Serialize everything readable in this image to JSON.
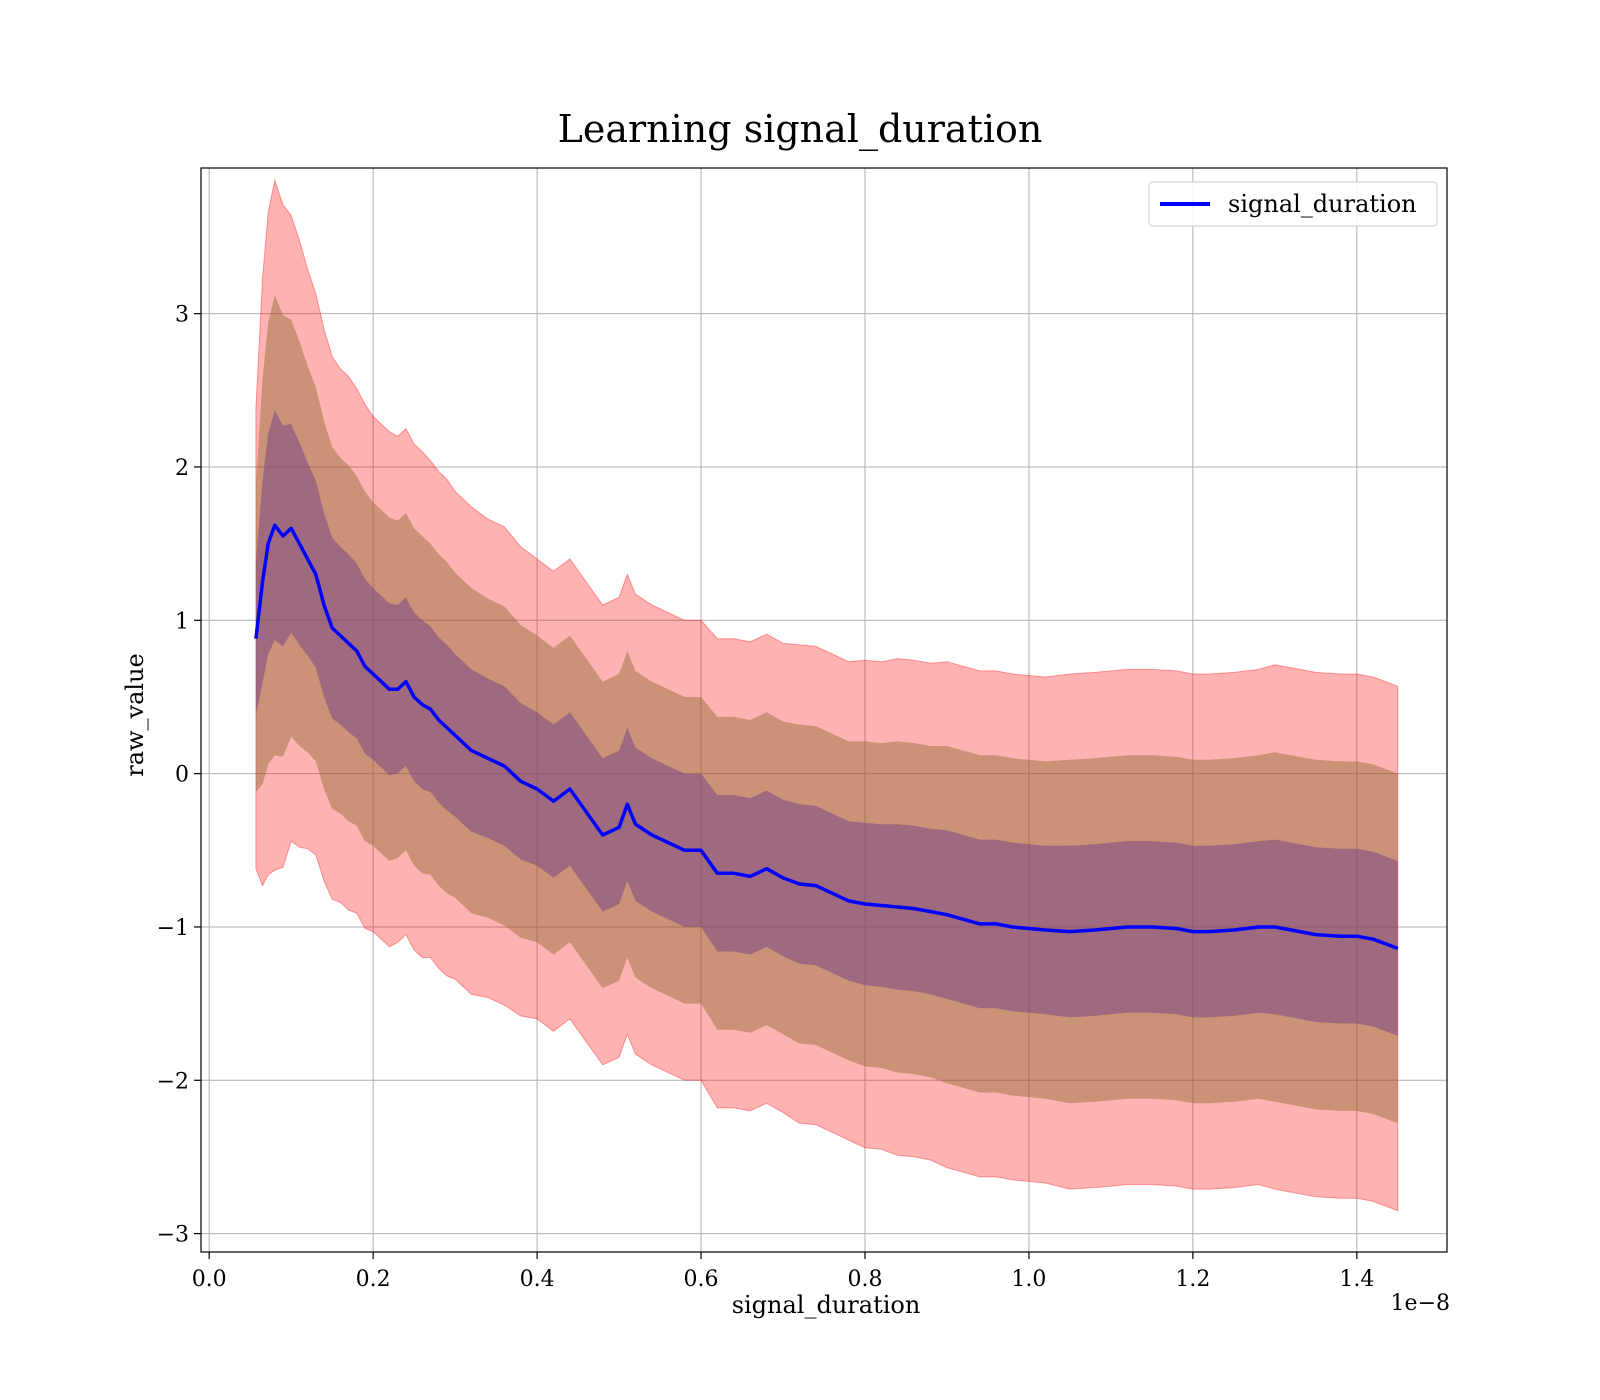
{
  "chart_data": {
    "type": "area",
    "title": "Learning signal_duration",
    "xlabel": "signal_duration",
    "ylabel": "raw_value",
    "x_offset_label": "1e−8",
    "xlim": [
      -0.01,
      1.51
    ],
    "ylim": [
      -3.12,
      3.95
    ],
    "xticks": [
      0.0,
      0.2,
      0.4,
      0.6,
      0.8,
      1.0,
      1.2,
      1.4
    ],
    "xtick_labels": [
      "0.0",
      "0.2",
      "0.4",
      "0.6",
      "0.8",
      "1.0",
      "1.2",
      "1.4"
    ],
    "yticks": [
      -3,
      -2,
      -1,
      0,
      1,
      2,
      3
    ],
    "ytick_labels": [
      "−3",
      "−2",
      "−1",
      "0",
      "1",
      "2",
      "3"
    ],
    "grid": true,
    "legend_position": "top-right",
    "colors": {
      "mean_line": "#0000ff",
      "band_3sigma": "#ff0000",
      "band_2sigma": "#8b6b2e",
      "band_1sigma": "#6b3a8a",
      "grid": "#b0b0b0"
    },
    "series": [
      {
        "name": "signal_duration",
        "x": [
          0.057,
          0.065,
          0.072,
          0.08,
          0.09,
          0.1,
          0.11,
          0.12,
          0.13,
          0.14,
          0.15,
          0.16,
          0.17,
          0.18,
          0.19,
          0.2,
          0.21,
          0.22,
          0.23,
          0.24,
          0.25,
          0.26,
          0.27,
          0.28,
          0.29,
          0.3,
          0.32,
          0.34,
          0.36,
          0.38,
          0.4,
          0.42,
          0.44,
          0.46,
          0.48,
          0.5,
          0.51,
          0.52,
          0.54,
          0.56,
          0.58,
          0.6,
          0.62,
          0.64,
          0.66,
          0.68,
          0.7,
          0.72,
          0.74,
          0.76,
          0.78,
          0.8,
          0.82,
          0.84,
          0.86,
          0.88,
          0.9,
          0.92,
          0.94,
          0.96,
          0.98,
          1.0,
          1.02,
          1.05,
          1.08,
          1.1,
          1.12,
          1.15,
          1.18,
          1.2,
          1.22,
          1.25,
          1.28,
          1.3,
          1.32,
          1.35,
          1.38,
          1.4,
          1.42,
          1.45
        ],
        "mean": [
          0.88,
          1.25,
          1.5,
          1.62,
          1.55,
          1.6,
          1.5,
          1.4,
          1.3,
          1.1,
          0.95,
          0.9,
          0.85,
          0.8,
          0.7,
          0.65,
          0.6,
          0.55,
          0.55,
          0.6,
          0.5,
          0.45,
          0.42,
          0.35,
          0.3,
          0.25,
          0.15,
          0.1,
          0.05,
          -0.05,
          -0.1,
          -0.18,
          -0.1,
          -0.25,
          -0.4,
          -0.35,
          -0.2,
          -0.33,
          -0.4,
          -0.45,
          -0.5,
          -0.5,
          -0.65,
          -0.65,
          -0.67,
          -0.62,
          -0.68,
          -0.72,
          -0.73,
          -0.78,
          -0.83,
          -0.85,
          -0.86,
          -0.87,
          -0.88,
          -0.9,
          -0.92,
          -0.95,
          -0.98,
          -0.98,
          -1.0,
          -1.01,
          -1.02,
          -1.03,
          -1.02,
          -1.01,
          -1.0,
          -1.0,
          -1.01,
          -1.03,
          -1.03,
          -1.02,
          -1.0,
          -1.0,
          -1.02,
          -1.05,
          -1.06,
          -1.06,
          -1.08,
          -1.14
        ],
        "std": [
          0.5,
          0.66,
          0.72,
          0.75,
          0.72,
          0.68,
          0.66,
          0.63,
          0.61,
          0.6,
          0.59,
          0.58,
          0.58,
          0.57,
          0.57,
          0.56,
          0.56,
          0.56,
          0.55,
          0.55,
          0.55,
          0.55,
          0.54,
          0.54,
          0.54,
          0.53,
          0.53,
          0.52,
          0.52,
          0.51,
          0.5,
          0.5,
          0.5,
          0.5,
          0.5,
          0.5,
          0.5,
          0.5,
          0.5,
          0.5,
          0.5,
          0.5,
          0.51,
          0.51,
          0.51,
          0.51,
          0.51,
          0.52,
          0.52,
          0.52,
          0.52,
          0.53,
          0.53,
          0.54,
          0.54,
          0.54,
          0.55,
          0.55,
          0.55,
          0.55,
          0.55,
          0.55,
          0.55,
          0.56,
          0.56,
          0.56,
          0.56,
          0.56,
          0.56,
          0.56,
          0.56,
          0.56,
          0.56,
          0.57,
          0.57,
          0.57,
          0.57,
          0.57,
          0.57,
          0.57
        ]
      }
    ]
  }
}
